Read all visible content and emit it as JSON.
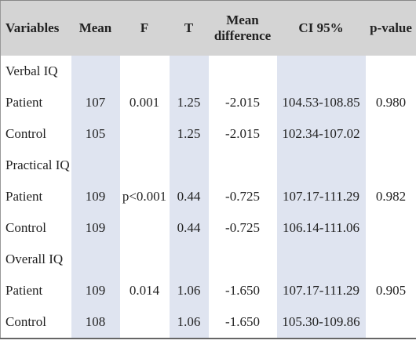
{
  "table": {
    "columns": [
      "Variables",
      "Mean",
      "F",
      "T",
      "Mean difference",
      "CI 95%",
      "p-value"
    ],
    "rows": [
      [
        "Verbal IQ",
        null,
        null,
        null,
        null,
        null,
        null
      ],
      [
        "Patient",
        "107",
        "0.001",
        "1.25",
        "-2.015",
        "104.53-108.85",
        "0.980"
      ],
      [
        "Control",
        "105",
        null,
        "1.25",
        "-2.015",
        "102.34-107.02",
        null
      ],
      [
        "Practical IQ",
        null,
        null,
        null,
        null,
        null,
        null
      ],
      [
        "Patient",
        "109",
        "p<0.001",
        "0.44",
        "-0.725",
        "107.17-111.29",
        "0.982"
      ],
      [
        "Control",
        "109",
        null,
        "0.44",
        "-0.725",
        "106.14-111.06",
        null
      ],
      [
        "Overall IQ",
        null,
        null,
        null,
        null,
        null,
        null
      ],
      [
        "Patient",
        "109",
        "0.014",
        "1.06",
        "-1.650",
        "107.17-111.29",
        "0.905"
      ],
      [
        "Control",
        "108",
        null,
        "1.06",
        "-1.650",
        "105.30-109.86",
        null
      ]
    ]
  }
}
